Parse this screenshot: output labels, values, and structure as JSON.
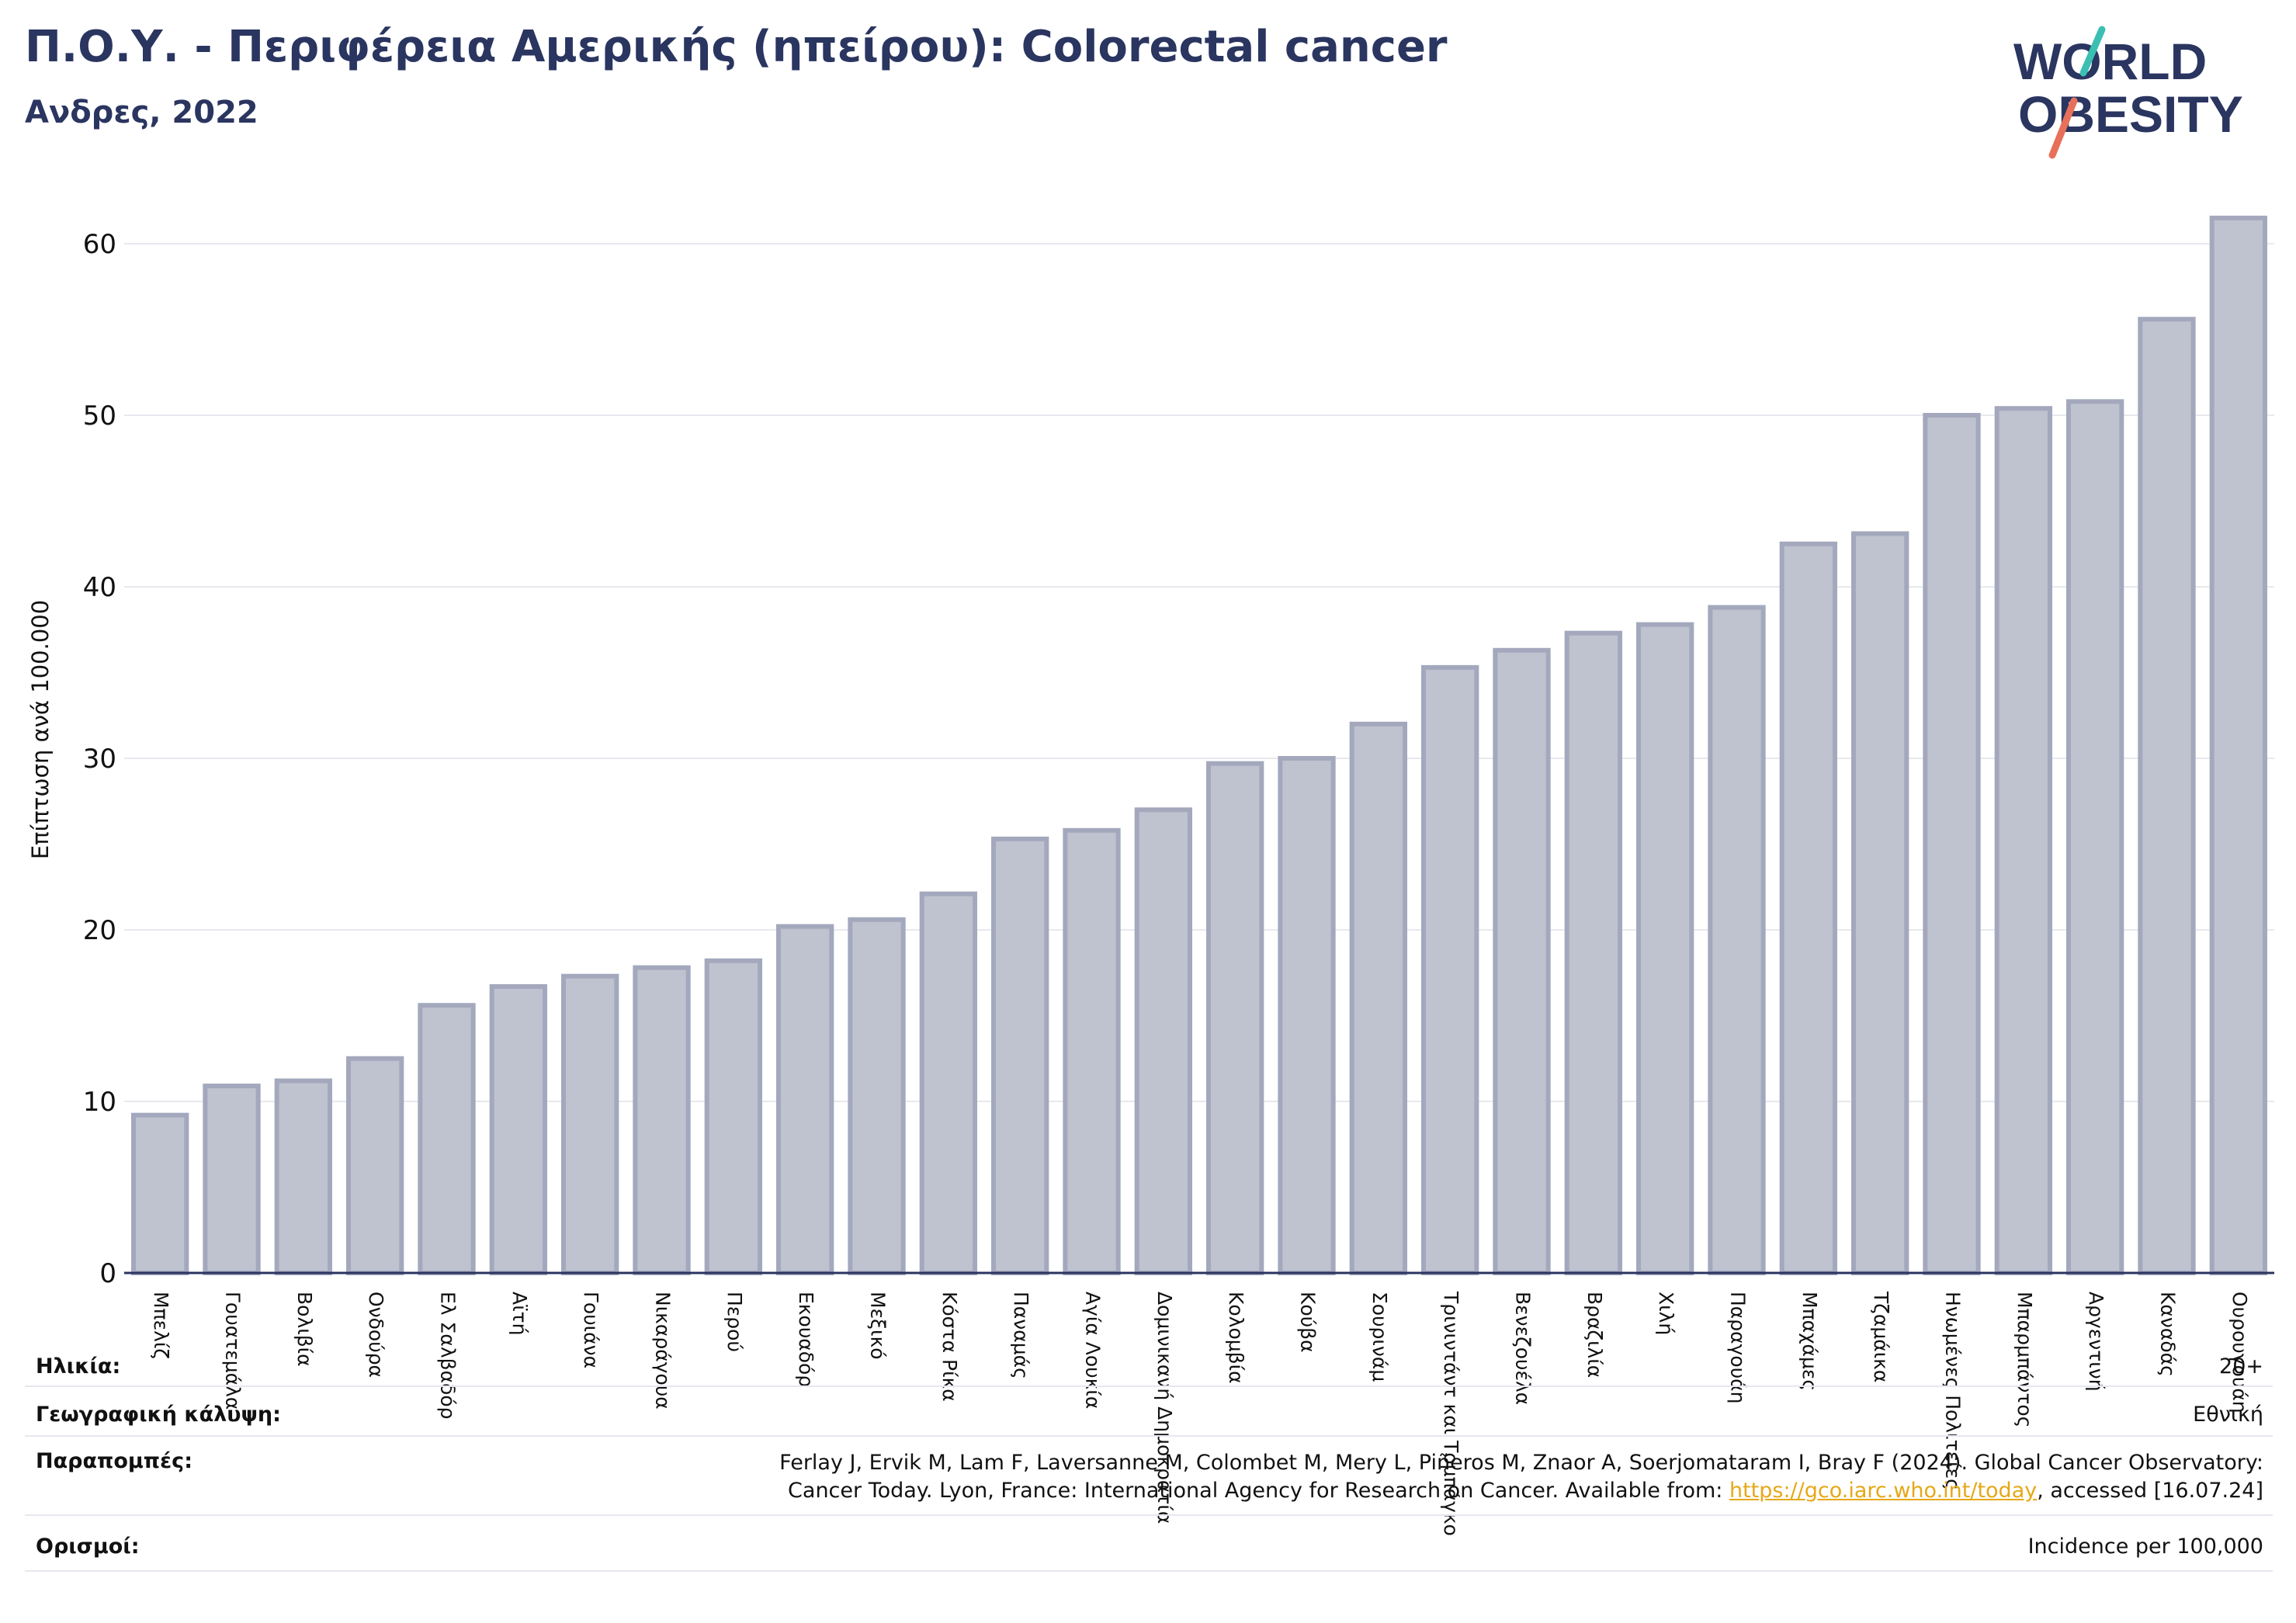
{
  "header": {
    "title": "Π.Ο.Υ. - Περιφέρεια Αμερικής (ηπείρου): Colorectal cancer",
    "subtitle": "Ανδρες, 2022"
  },
  "logo": {
    "line1": "WORLD",
    "line2": "OBESITY",
    "accent_teal": "#3bbfb2",
    "accent_coral": "#e8705a",
    "text_color": "#2a3560"
  },
  "chart_data": {
    "type": "bar",
    "ylabel": "Επίπτωση ανά 100.000",
    "xlabel": "",
    "ylim": [
      0,
      64
    ],
    "yticks": [
      0,
      10,
      20,
      30,
      40,
      50,
      60
    ],
    "grid": true,
    "bar_color": "#bfc2cf",
    "bar_edge_color": "#a3a8bd",
    "categories": [
      "Μπελίζ",
      "Γουατεμάλα",
      "Βολιβία",
      "Ονδούρα",
      "Ελ Σαλβαδόρ",
      "Αϊτή",
      "Γουιάνα",
      "Νικαράγουα",
      "Περού",
      "Εκουαδόρ",
      "Μεξικό",
      "Κόστα Ρίκα",
      "Παναμάς",
      "Αγία Λουκία",
      "Δομινικανή Δημοκρατία",
      "Κολομβία",
      "Κούβα",
      "Σουρινάμ",
      "Τρινιντάντ και Τομπάγκο",
      "Βενεζουέλα",
      "Βραζιλία",
      "Χιλή",
      "Παραγουάη",
      "Μπαχάμες",
      "Τζαμάικα",
      "Ηνωμένες Πολιτείες",
      "Μπαρμπάντος",
      "Αργεντινή",
      "Καναδάς",
      "Ουρουγουάη"
    ],
    "values": [
      9.2,
      10.9,
      11.2,
      12.5,
      15.6,
      16.7,
      17.3,
      17.8,
      18.2,
      20.2,
      20.6,
      22.1,
      25.3,
      25.8,
      27.0,
      29.7,
      30.0,
      32.0,
      35.3,
      36.3,
      37.3,
      37.8,
      38.8,
      42.5,
      43.1,
      50.0,
      50.4,
      50.8,
      55.6,
      61.5
    ]
  },
  "info": {
    "age_label": "Ηλικία:",
    "age_value": "20+",
    "coverage_label": "Γεωγραφική κάλυψη:",
    "coverage_value": "Εθνική",
    "refs_label": "Παραπομπές:",
    "refs_line1": "Ferlay J, Ervik M, Lam F, Laversanne M, Colombet M, Mery L, Piñeros M, Znaor A, Soerjomataram I, Bray F (2024). Global Cancer Observatory:",
    "refs_line2_pre": "Cancer Today. Lyon, France: International Agency for Research on Cancer. Available from: ",
    "refs_link": "https://gco.iarc.who.int/today",
    "refs_line2_post": ", accessed [16.07.24]",
    "defs_label": "Ορισμοί:",
    "defs_value": "Incidence per 100,000"
  }
}
